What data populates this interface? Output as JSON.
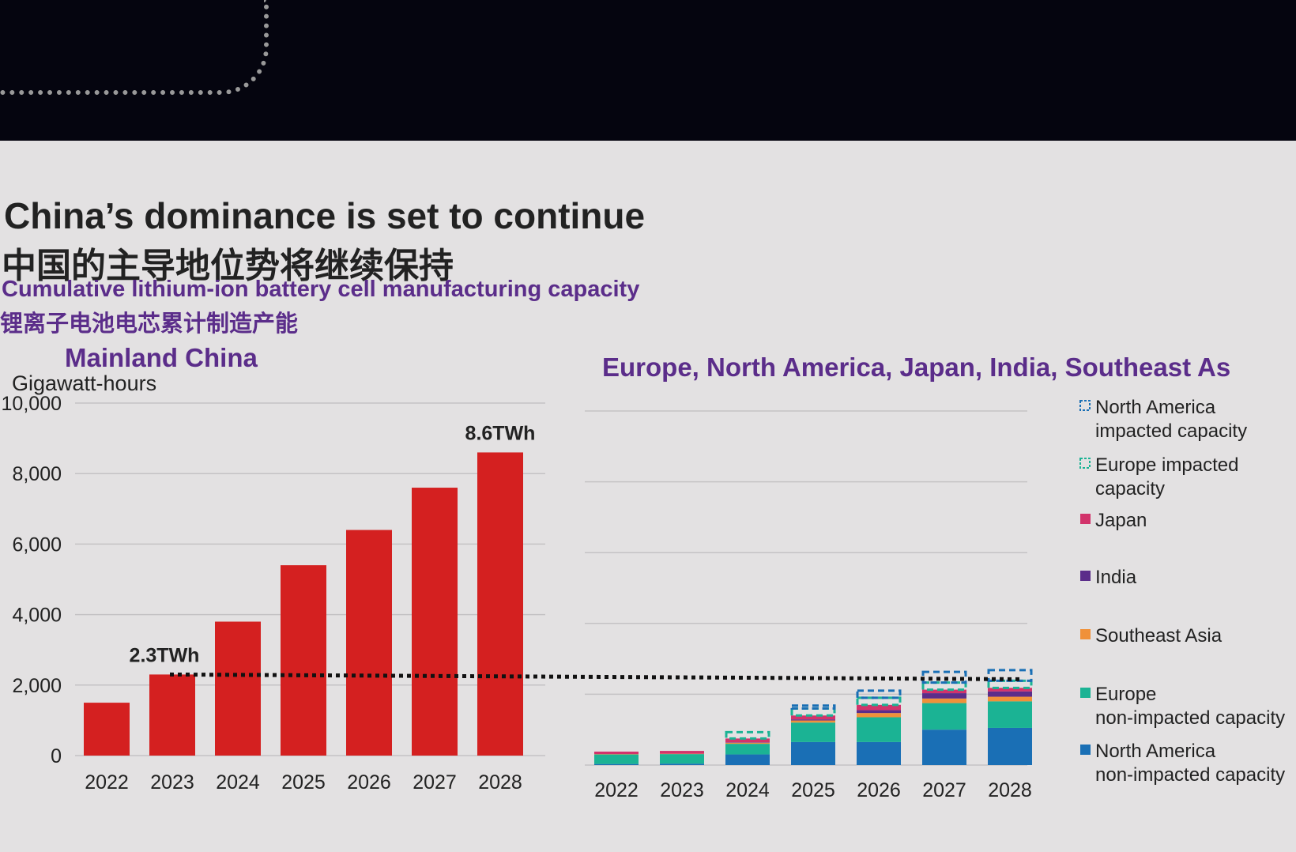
{
  "title": "China’s dominance is set to continue",
  "title_cn": "中国的主导地位势将继续保持",
  "subtitle": "Cumulative lithium-ion battery cell manufacturing capacity",
  "subtitle_cn": "锂离子电池电芯累计制造产能",
  "chart_data": [
    {
      "type": "bar",
      "title": "Mainland China",
      "ylabel": "Gigawatt-hours",
      "ylim": [
        0,
        10000
      ],
      "yticks": [
        "0",
        "2,000",
        "4,000",
        "6,000",
        "8,000",
        "10,000"
      ],
      "grid": true,
      "categories": [
        "2022",
        "2023",
        "2024",
        "2025",
        "2026",
        "2027",
        "2028"
      ],
      "values": [
        1500,
        2300,
        3800,
        5400,
        6400,
        7600,
        8600
      ],
      "color": "#d42020",
      "annotations": [
        {
          "label": "2.3TWh",
          "category": "2023",
          "value": 2300
        },
        {
          "label": "8.6TWh",
          "category": "2028",
          "value": 8600
        }
      ],
      "reference_line": {
        "value": 2300,
        "style": "dotted"
      }
    },
    {
      "type": "bar",
      "stacked": true,
      "title": "Europe, North America, Japan, India, Southeast As",
      "ylim": [
        0,
        10000
      ],
      "grid": true,
      "legend": "right",
      "categories": [
        "2022",
        "2023",
        "2024",
        "2025",
        "2026",
        "2027",
        "2028"
      ],
      "series": [
        {
          "name": "North America non-impacted capacity",
          "color": "#1a6fb5",
          "values": [
            30,
            40,
            300,
            650,
            650,
            1000,
            1050
          ]
        },
        {
          "name": "Europe non-impacted capacity",
          "color": "#1bb394",
          "values": [
            270,
            270,
            300,
            550,
            700,
            750,
            750
          ]
        },
        {
          "name": "Southeast Asia",
          "color": "#f0913a",
          "values": [
            10,
            10,
            30,
            60,
            120,
            130,
            130
          ]
        },
        {
          "name": "India",
          "color": "#5b2d8a",
          "values": [
            0,
            0,
            10,
            30,
            80,
            150,
            150
          ]
        },
        {
          "name": "Japan",
          "color": "#d2336b",
          "values": [
            70,
            80,
            110,
            110,
            150,
            100,
            100
          ]
        },
        {
          "name": "Europe impacted capacity",
          "color": "#1bb394",
          "dashed": true,
          "values": [
            0,
            0,
            180,
            200,
            200,
            200,
            200
          ]
        },
        {
          "name": "North America impacted capacity",
          "color": "#1a6fb5",
          "dashed": true,
          "values": [
            0,
            0,
            0,
            80,
            200,
            300,
            300
          ]
        }
      ]
    }
  ]
}
